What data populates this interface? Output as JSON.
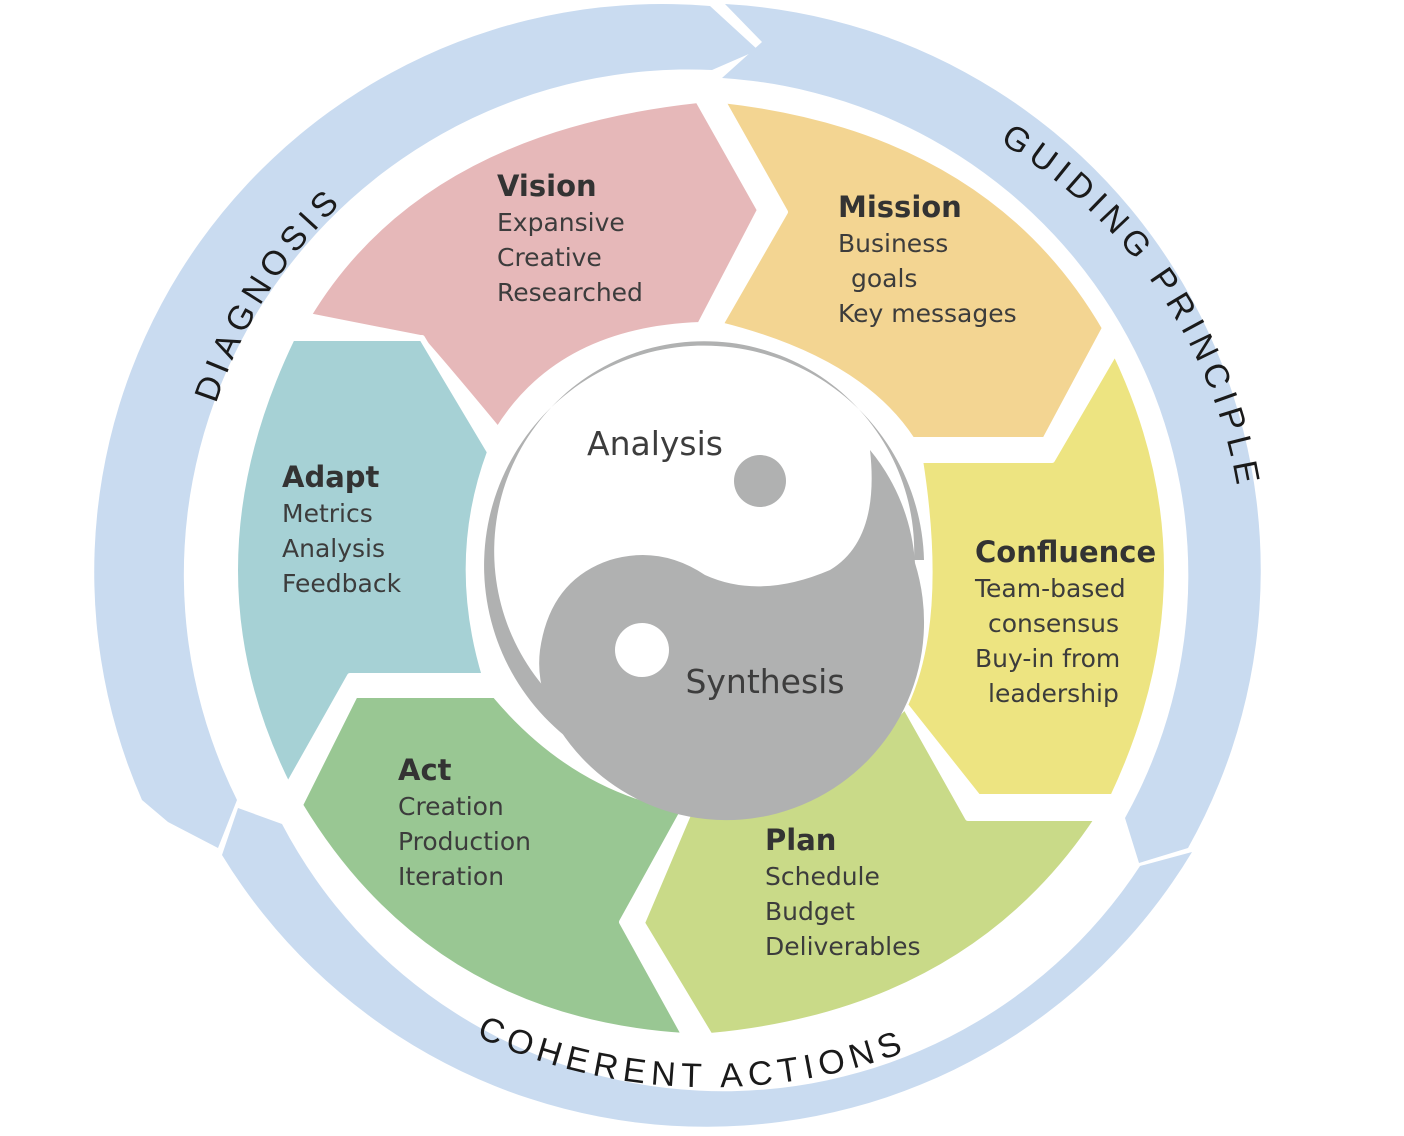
{
  "ring_labels": {
    "diagnosis": "DIAGNOSIS",
    "guiding_principles": "GUIDING PRINCIPLES",
    "coherent_actions": "COHERENT ACTIONS"
  },
  "segments": [
    {
      "key": "vision",
      "title": "Vision",
      "lines": [
        "Expansive",
        "Creative",
        "Researched"
      ],
      "color": "#e6b8b9"
    },
    {
      "key": "mission",
      "title": "Mission",
      "lines": [
        "Business",
        "goals",
        "Key messages"
      ],
      "color": "#f3d592"
    },
    {
      "key": "confluence",
      "title": "Confluence",
      "lines": [
        "Team-based",
        "consensus",
        "Buy-in from",
        "leadership"
      ],
      "color": "#ede481"
    },
    {
      "key": "plan",
      "title": "Plan",
      "lines": [
        "Schedule",
        "Budget",
        "Deliverables"
      ],
      "color": "#c9da88"
    },
    {
      "key": "act",
      "title": "Act",
      "lines": [
        "Creation",
        "Production",
        "Iteration"
      ],
      "color": "#99c793"
    },
    {
      "key": "adapt",
      "title": "Adapt",
      "lines": [
        "Metrics",
        "Analysis",
        "Feedback"
      ],
      "color": "#a6d1d5"
    }
  ],
  "center": {
    "top_label": "Analysis",
    "bottom_label": "Synthesis",
    "dark_color": "#b0b1b1",
    "light_color": "#ffffff"
  },
  "ring_color": "#c9dbf0"
}
